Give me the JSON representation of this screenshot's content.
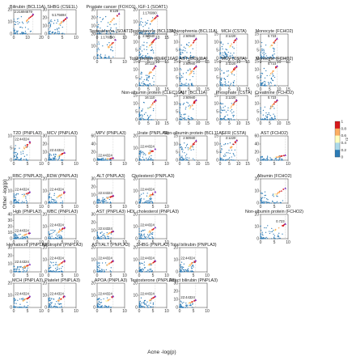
{
  "chart_data": {
    "type": "scatter",
    "xlabel": "Acne -log(p)",
    "ylabel": "Other -log(p)",
    "colorbar": {
      "label": "r2",
      "ticks": [
        "1",
        "0.8",
        "0.6",
        "0.4",
        "0.2",
        "0"
      ],
      "colors": [
        "#d7191c",
        "#fdae61",
        "#ffffbf",
        "#abd9e9",
        "#2c7bb6"
      ]
    },
    "panels": [
      {
        "title": "Bilirubin (BCL11A)",
        "lead": "2:21694679",
        "peak": [
          14,
          20
        ],
        "xlim": [
          0,
          20
        ],
        "ylim": [
          0,
          25
        ],
        "xticks": [
          "0",
          "10",
          "20"
        ],
        "yticks": [
          "0",
          "10",
          "20"
        ]
      },
      {
        "title": "SHBG (CSE1L)",
        "lead": "5:175694",
        "peak": [
          8,
          20
        ],
        "xlim": [
          0,
          12
        ],
        "ylim": [
          0,
          30
        ],
        "xticks": [
          "0",
          "5",
          "10"
        ],
        "yticks": [
          "0",
          "10",
          "20",
          "30"
        ]
      },
      {
        "title": "Prostate cancer (FOXO1)",
        "lead": "8:128",
        "peak": [
          8,
          25
        ],
        "xlim": [
          0,
          10
        ],
        "ylim": [
          0,
          30
        ],
        "xticks": [
          "0",
          "5",
          "10"
        ],
        "yticks": [
          "0",
          "10",
          "20",
          "30"
        ]
      },
      {
        "title": "IGF-1 (SOAT1)",
        "lead": "1:176090",
        "peak": [
          10,
          15
        ],
        "xlim": [
          0,
          15
        ],
        "ylim": [
          0,
          20
        ],
        "xticks": [
          "0",
          "5",
          "10",
          "15"
        ],
        "yticks": [
          "0",
          "10",
          "20"
        ]
      },
      {
        "title": "Testosterone (BCL11A)",
        "lead": "2:60940",
        "peak": [
          9,
          12
        ],
        "xlim": [
          0,
          15
        ],
        "ylim": [
          0,
          15
        ],
        "xticks": [
          "0",
          "5",
          "10",
          "15"
        ],
        "yticks": [
          "0",
          "5",
          "10",
          "15"
        ]
      },
      {
        "title": "Schizophrenia (BCL11A)",
        "lead": "2:60940",
        "peak": [
          9,
          12
        ],
        "xlim": [
          0,
          15
        ],
        "ylim": [
          0,
          15
        ],
        "xticks": [
          "0",
          "5",
          "10",
          "15"
        ],
        "yticks": [
          "0",
          "5",
          "10",
          "15"
        ]
      },
      {
        "title": "MCH (CSTA)",
        "lead": "3:1220",
        "peak": [
          9,
          12
        ],
        "xlim": [
          0,
          15
        ],
        "ylim": [
          0,
          15
        ],
        "xticks": [
          "0",
          "5",
          "10",
          "15"
        ],
        "yticks": [
          "0",
          "5",
          "10",
          "15"
        ]
      },
      {
        "title": "Monocyte (FCHO2)",
        "lead": "0.723",
        "peak": [
          9,
          12
        ],
        "xlim": [
          0,
          15
        ],
        "ylim": [
          0,
          15
        ],
        "xticks": [
          "0",
          "5",
          "10",
          "15"
        ],
        "yticks": [
          "0",
          "5",
          "10",
          "15"
        ]
      },
      {
        "title": "Testosterone (SOAT1)",
        "lead": "1:176090",
        "peak": [
          8,
          15
        ],
        "xlim": [
          0,
          12
        ],
        "ylim": [
          0,
          20
        ],
        "xticks": [
          "0",
          "5",
          "10"
        ],
        "yticks": [
          "0",
          "10",
          "20"
        ]
      },
      {
        "title": "Total protein (CLEC16A)",
        "lead": "16:110",
        "peak": [
          9,
          12
        ],
        "xlim": [
          0,
          15
        ],
        "ylim": [
          0,
          15
        ],
        "xticks": [
          "0",
          "5",
          "10",
          "15"
        ],
        "yticks": [
          "0",
          "5",
          "10",
          "15"
        ]
      },
      {
        "title": "AST (BCL11A)",
        "lead": "2:60940",
        "peak": [
          9,
          12
        ],
        "xlim": [
          0,
          15
        ],
        "ylim": [
          0,
          15
        ],
        "xticks": [
          "0",
          "5",
          "10",
          "15"
        ],
        "yticks": [
          "0",
          "5",
          "10",
          "15"
        ]
      },
      {
        "title": "MCV (CSTA)",
        "lead": "3:1220",
        "peak": [
          9,
          12
        ],
        "xlim": [
          0,
          15
        ],
        "ylim": [
          0,
          15
        ],
        "xticks": [
          "0",
          "5",
          "10",
          "15"
        ],
        "yticks": [
          "0",
          "5",
          "10",
          "15"
        ]
      },
      {
        "title": "Monocyte (FCHO2)",
        "lead": "0.723",
        "peak": [
          9,
          12
        ],
        "xlim": [
          0,
          15
        ],
        "ylim": [
          0,
          15
        ],
        "xticks": [
          "0",
          "5",
          "10",
          "15"
        ],
        "yticks": [
          "0",
          "5",
          "10",
          "15"
        ]
      },
      {
        "title": "Non-albumin protein (CLEC16A)",
        "lead": "16:110",
        "peak": [
          9,
          12
        ],
        "xlim": [
          0,
          15
        ],
        "ylim": [
          0,
          15
        ],
        "xticks": [
          "0",
          "5",
          "10",
          "15"
        ],
        "yticks": [
          "0",
          "5",
          "10",
          "15"
        ]
      },
      {
        "title": "ALT (BCL11A)",
        "lead": "2:60940",
        "peak": [
          9,
          12
        ],
        "xlim": [
          0,
          15
        ],
        "ylim": [
          0,
          15
        ],
        "xticks": [
          "0",
          "5",
          "10",
          "15"
        ],
        "yticks": [
          "0",
          "5",
          "10",
          "15"
        ]
      },
      {
        "title": "Phosphate (CSTA)",
        "lead": "3:1220",
        "peak": [
          9,
          12
        ],
        "xlim": [
          0,
          15
        ],
        "ylim": [
          0,
          15
        ],
        "xticks": [
          "0",
          "5",
          "10",
          "15"
        ],
        "yticks": [
          "0",
          "5",
          "10",
          "15"
        ]
      },
      {
        "title": "Creatinine (FCHO2)",
        "lead": "0.723",
        "peak": [
          9,
          12
        ],
        "xlim": [
          0,
          15
        ],
        "ylim": [
          0,
          15
        ],
        "xticks": [
          "0",
          "5",
          "10",
          "15"
        ],
        "yticks": [
          "0",
          "5",
          "10",
          "15"
        ]
      },
      {
        "title": "T2D (PNPLA3)",
        "lead": "22:44324",
        "peak": [
          7,
          9
        ],
        "xlim": [
          0,
          12
        ],
        "ylim": [
          0,
          12
        ],
        "xticks": [
          "0",
          "5",
          "10"
        ],
        "yticks": [
          "0",
          "5",
          "10"
        ]
      },
      {
        "title": "MCV (PNPLA3)",
        "lead": "22:44324",
        "peak": [
          7,
          9
        ],
        "xlim": [
          0,
          12
        ],
        "ylim": [
          0,
          30
        ],
        "xticks": [
          "0",
          "5",
          "10"
        ],
        "yticks": [
          "0",
          "10",
          "20",
          "30"
        ]
      },
      {
        "title": "MPV (PNPLA3)",
        "lead": "22:44324",
        "peak": [
          7,
          5
        ],
        "xlim": [
          0,
          12
        ],
        "ylim": [
          0,
          60
        ],
        "xticks": [
          "0",
          "5",
          "10"
        ],
        "yticks": [
          "0",
          "20",
          "40",
          "60"
        ]
      },
      {
        "title": "Urate (PNPLA3)",
        "lead": "22:44324",
        "peak": [
          7,
          9
        ],
        "xlim": [
          0,
          12
        ],
        "ylim": [
          0,
          20
        ],
        "xticks": [
          "0",
          "5",
          "10"
        ],
        "yticks": [
          "0",
          "10",
          "20"
        ]
      },
      {
        "title": "Non-albumin protein (BCL11A)",
        "lead": "2:60940",
        "peak": [
          9,
          12
        ],
        "xlim": [
          0,
          15
        ],
        "ylim": [
          0,
          15
        ],
        "xticks": [
          "0",
          "5",
          "10",
          "15"
        ],
        "yticks": [
          "0",
          "5",
          "10",
          "15"
        ]
      },
      {
        "title": "GFR (CSTA)",
        "lead": "3:1220",
        "peak": [
          9,
          12
        ],
        "xlim": [
          0,
          15
        ],
        "ylim": [
          0,
          15
        ],
        "xticks": [
          "0",
          "5",
          "10",
          "15"
        ],
        "yticks": [
          "0",
          "5",
          "10",
          "15"
        ]
      },
      {
        "title": "AST (FCHO2)",
        "lead": "",
        "peak": [
          9,
          12
        ],
        "xlim": [
          0,
          10
        ],
        "ylim": [
          0,
          60
        ],
        "xticks": [
          "0",
          "5",
          "10"
        ],
        "yticks": [
          "0",
          "20",
          "40",
          "60"
        ]
      },
      {
        "title": "RBC (PNPLA3)",
        "lead": "22:44324",
        "peak": [
          7,
          9
        ],
        "xlim": [
          0,
          12
        ],
        "ylim": [
          0,
          20
        ],
        "xticks": [
          "0",
          "5",
          "10"
        ],
        "yticks": [
          "0",
          "10",
          "20"
        ]
      },
      {
        "title": "RDW (PNPLA3)",
        "lead": "22:44324",
        "peak": [
          7,
          9
        ],
        "xlim": [
          0,
          12
        ],
        "ylim": [
          0,
          20
        ],
        "xticks": [
          "0",
          "5",
          "10"
        ],
        "yticks": [
          "0",
          "10",
          "20"
        ]
      },
      {
        "title": "ALT (PNPLA3)",
        "lead": "22:44324",
        "peak": [
          7,
          9
        ],
        "xlim": [
          0,
          12
        ],
        "ylim": [
          0,
          30
        ],
        "xticks": [
          "0",
          "5",
          "10"
        ],
        "yticks": [
          "0",
          "10",
          "20",
          "30"
        ]
      },
      {
        "title": "Cholesterol (PNPLA3)",
        "lead": "22:44324",
        "peak": [
          7,
          9
        ],
        "xlim": [
          0,
          12
        ],
        "ylim": [
          0,
          20
        ],
        "xticks": [
          "0",
          "5",
          "10"
        ],
        "yticks": [
          "0",
          "10",
          "20"
        ]
      },
      {
        "title": "Albumin (FCHO2)",
        "lead": "",
        "peak": [
          9,
          12
        ],
        "xlim": [
          0,
          10
        ],
        "ylim": [
          0,
          20
        ],
        "xticks": [
          "0",
          "5",
          "10"
        ],
        "yticks": [
          "0",
          "10",
          "20"
        ]
      },
      {
        "title": "Hgb (PNPLA3)",
        "lead": "22:44324",
        "peak": [
          7,
          9
        ],
        "xlim": [
          0,
          12
        ],
        "ylim": [
          0,
          40
        ],
        "xticks": [
          "0",
          "5",
          "10"
        ],
        "yticks": [
          "0",
          "10",
          "20",
          "30",
          "40"
        ]
      },
      {
        "title": "WBC (PNPLA3)",
        "lead": "22:44324",
        "peak": [
          7,
          9
        ],
        "xlim": [
          0,
          12
        ],
        "ylim": [
          0,
          20
        ],
        "xticks": [
          "0",
          "5",
          "10"
        ],
        "yticks": [
          "0",
          "10",
          "20"
        ]
      },
      {
        "title": "AST (PNPLA3)",
        "lead": "22:44324",
        "peak": [
          7,
          9
        ],
        "xlim": [
          0,
          12
        ],
        "ylim": [
          0,
          30
        ],
        "xticks": [
          "0",
          "5",
          "10"
        ],
        "yticks": [
          "0",
          "10",
          "20",
          "30"
        ]
      },
      {
        "title": "HDL cholesterol (PNPLA3)",
        "lead": "22:44324",
        "peak": [
          7,
          9
        ],
        "xlim": [
          0,
          12
        ],
        "ylim": [
          0,
          20
        ],
        "xticks": [
          "0",
          "5",
          "10"
        ],
        "yticks": [
          "0",
          "10",
          "20"
        ]
      },
      {
        "title": "Non-albumin protein (FCHO2)",
        "lead": "0.723",
        "peak": [
          9,
          12
        ],
        "xlim": [
          0,
          10
        ],
        "ylim": [
          0,
          20
        ],
        "xticks": [
          "0",
          "5",
          "10"
        ],
        "yticks": [
          "0",
          "10",
          "20"
        ]
      },
      {
        "title": "Hematocrit (PNPLA3)",
        "lead": "22:44324",
        "peak": [
          7,
          9
        ],
        "xlim": [
          0,
          12
        ],
        "ylim": [
          0,
          30
        ],
        "xticks": [
          "0",
          "5",
          "10"
        ],
        "yticks": [
          "0",
          "10",
          "20",
          "30"
        ]
      },
      {
        "title": "Neutrophil (PNPLA3)",
        "lead": "22:44324",
        "peak": [
          7,
          9
        ],
        "xlim": [
          0,
          12
        ],
        "ylim": [
          0,
          20
        ],
        "xticks": [
          "0",
          "5",
          "10"
        ],
        "yticks": [
          "0",
          "10",
          "20"
        ]
      },
      {
        "title": "AST/ALT (PNPLA3)",
        "lead": "22:44324",
        "peak": [
          7,
          9
        ],
        "xlim": [
          0,
          12
        ],
        "ylim": [
          0,
          20
        ],
        "xticks": [
          "0",
          "5",
          "10"
        ],
        "yticks": [
          "0",
          "10",
          "20"
        ]
      },
      {
        "title": "SHBG (PNPLA3)",
        "lead": "22:44324",
        "peak": [
          7,
          9
        ],
        "xlim": [
          0,
          12
        ],
        "ylim": [
          0,
          20
        ],
        "xticks": [
          "0",
          "5",
          "10"
        ],
        "yticks": [
          "0",
          "10",
          "20"
        ]
      },
      {
        "title": "Total bilirubin (PNPLA3)",
        "lead": "22:44324",
        "peak": [
          7,
          9
        ],
        "xlim": [
          0,
          12
        ],
        "ylim": [
          0,
          20
        ],
        "xticks": [
          "0",
          "5",
          "10"
        ],
        "yticks": [
          "0",
          "10",
          "20"
        ]
      },
      {
        "title": "MCH (PNPLA3)",
        "lead": "22:44324",
        "peak": [
          7,
          9
        ],
        "xlim": [
          0,
          12
        ],
        "ylim": [
          0,
          20
        ],
        "xticks": [
          "0",
          "5",
          "10"
        ],
        "yticks": [
          "0",
          "10",
          "20"
        ]
      },
      {
        "title": "Platelet (PNPLA3)",
        "lead": "22:44324",
        "peak": [
          7,
          9
        ],
        "xlim": [
          0,
          12
        ],
        "ylim": [
          0,
          20
        ],
        "xticks": [
          "0",
          "5",
          "10"
        ],
        "yticks": [
          "0",
          "10",
          "20"
        ]
      },
      {
        "title": "APOA (PNPLA3)",
        "lead": "22:44324",
        "peak": [
          7,
          9
        ],
        "xlim": [
          0,
          12
        ],
        "ylim": [
          0,
          20
        ],
        "xticks": [
          "0",
          "5",
          "10"
        ],
        "yticks": [
          "0",
          "10",
          "20"
        ]
      },
      {
        "title": "Testosterone (PNPLA3)",
        "lead": "22:44324",
        "peak": [
          7,
          9
        ],
        "xlim": [
          0,
          12
        ],
        "ylim": [
          0,
          20
        ],
        "xticks": [
          "0",
          "5",
          "10"
        ],
        "yticks": [
          "0",
          "10",
          "20"
        ]
      },
      {
        "title": "Direct bilirubin (PNPLA3)",
        "lead": "22:44324",
        "peak": [
          7,
          9
        ],
        "xlim": [
          0,
          12
        ],
        "ylim": [
          0,
          30
        ],
        "xticks": [
          "0",
          "5",
          "10"
        ],
        "yticks": [
          "0",
          "10",
          "20",
          "30"
        ]
      }
    ]
  }
}
